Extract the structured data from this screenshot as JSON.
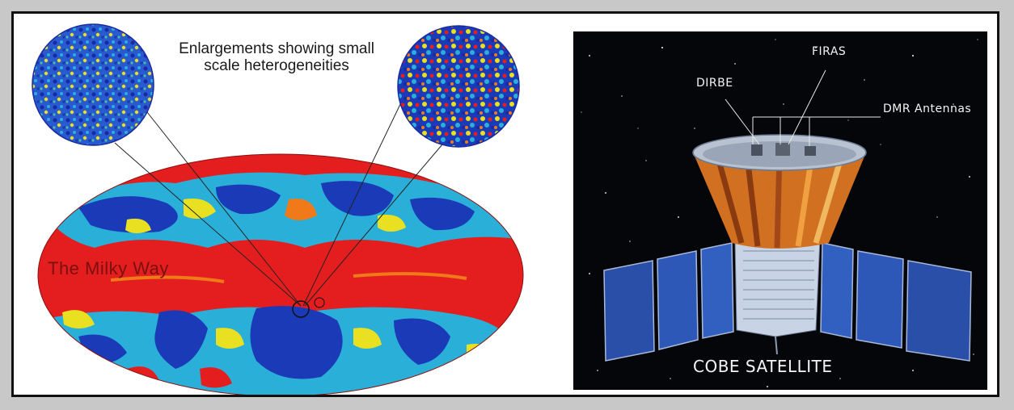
{
  "left": {
    "enlargement_caption_line1": "Enlargements showing small",
    "enlargement_caption_line2": "scale heterogeneities",
    "milky_way_label": "The Milky Way"
  },
  "right": {
    "labels": {
      "firas": "FIRAS",
      "dirbe": "DIRBE",
      "dmr": "DMR Antennas"
    },
    "title": "COBE SATELLITE"
  },
  "colors": {
    "hot": "#e41e1e",
    "warm": "#f07a1a",
    "mid": "#e8e020",
    "cool": "#2ab0d8",
    "cold": "#1a3ab8"
  }
}
